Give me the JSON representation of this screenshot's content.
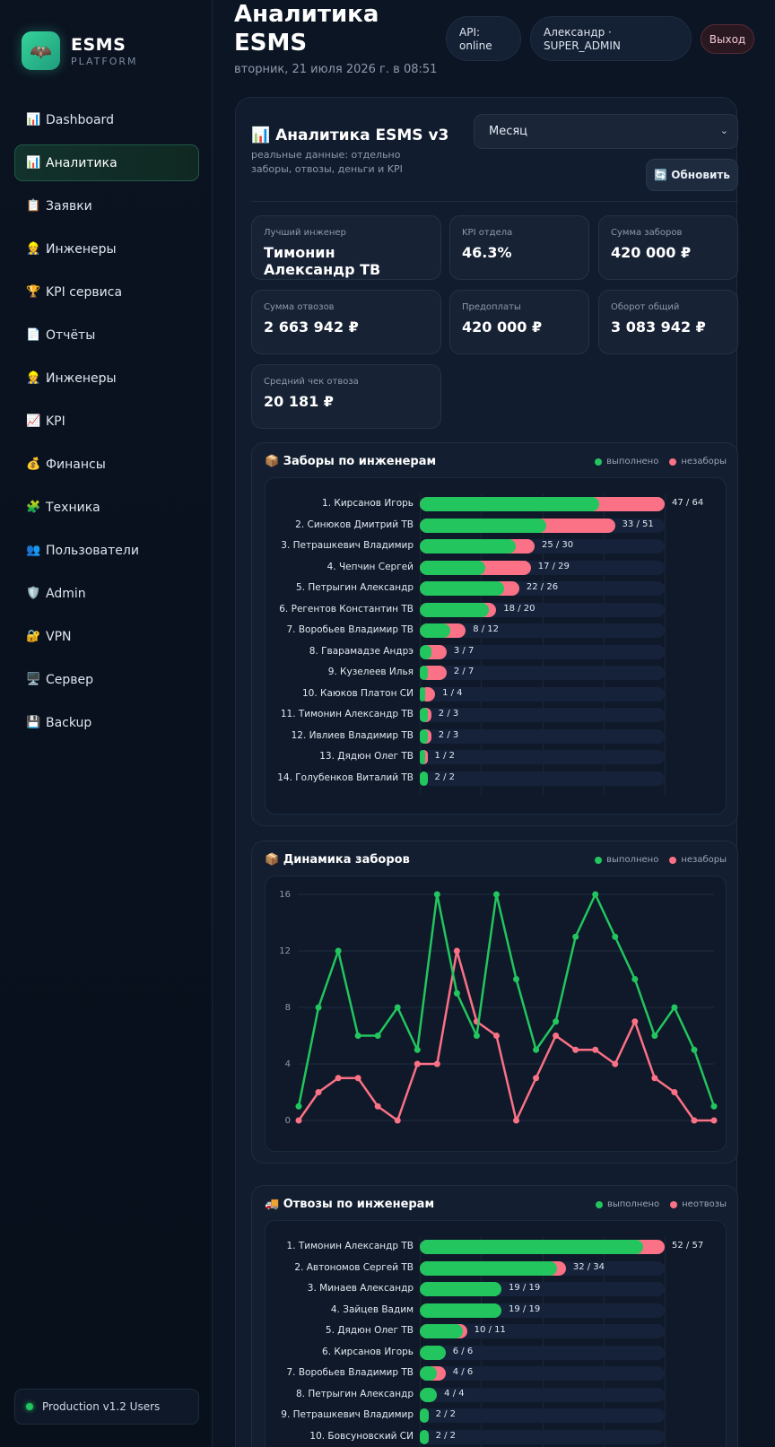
{
  "sidebar": {
    "brand_title": "ESMS",
    "brand_sub": "PLATFORM",
    "logo_icon": "🦇",
    "items": [
      {
        "icon": "📊",
        "label": "Dashboard",
        "active": false
      },
      {
        "icon": "📊",
        "label": "Аналитика",
        "active": true
      },
      {
        "icon": "📋",
        "label": "Заявки",
        "active": false
      },
      {
        "icon": "👷",
        "label": "Инженеры",
        "active": false
      },
      {
        "icon": "🏆",
        "label": "KPI сервиса",
        "active": false
      },
      {
        "icon": "📄",
        "label": "Отчёты",
        "active": false
      },
      {
        "icon": "👷",
        "label": "Инженеры",
        "active": false
      },
      {
        "icon": "📈",
        "label": "KPI",
        "active": false
      },
      {
        "icon": "💰",
        "label": "Финансы",
        "active": false
      },
      {
        "icon": "🧩",
        "label": "Техника",
        "active": false
      },
      {
        "icon": "👥",
        "label": "Пользователи",
        "active": false
      },
      {
        "icon": "🛡️",
        "label": "Admin",
        "active": false
      },
      {
        "icon": "🔐",
        "label": "VPN",
        "active": false
      },
      {
        "icon": "🖥️",
        "label": "Сервер",
        "active": false
      },
      {
        "icon": "💾",
        "label": "Backup",
        "active": false
      }
    ],
    "footer": "Production v1.2 Users"
  },
  "header": {
    "title": "Аналитика ESMS",
    "date": "вторник, 21 июля 2026 г. в 08:51",
    "api_status": "API: online",
    "user": "Александр · SUPER_ADMIN",
    "logout": "Выход"
  },
  "analytics": {
    "icon": "📊",
    "title": "Аналитика ESMS v3",
    "subtitle": "реальные данные: отдельно заборы, отвозы, деньги и KPI",
    "period": "Месяц",
    "refresh": "🔄 Обновить"
  },
  "kpis": [
    {
      "label": "Лучший инженер",
      "value": "Тимонин Александр ТВ"
    },
    {
      "label": "KPI отдела",
      "value": "46.3%"
    },
    {
      "label": "Сумма заборов",
      "value": "420 000 ₽"
    },
    {
      "label": "Сумма отвозов",
      "value": "2 663 942 ₽"
    },
    {
      "label": "Предоплаты",
      "value": "420 000 ₽"
    },
    {
      "label": "Оборот общий",
      "value": "3 083 942 ₽"
    },
    {
      "label": "Средний чек отвоза",
      "value": "20 181 ₽"
    }
  ],
  "colors": {
    "done": "#22c55e",
    "not_done": "#fb7185",
    "accent": "#35d49b"
  },
  "pickups": {
    "icon": "📦",
    "title": "Заборы по инженерам",
    "legend_done": "выполнено",
    "legend_fail": "незаборы",
    "max": 64,
    "rows": [
      {
        "label": "1. Кирсанов Игорь",
        "done": 47,
        "total": 64,
        "text": "47 / 64"
      },
      {
        "label": "2. Синюков Дмитрий ТВ",
        "done": 33,
        "total": 51,
        "text": "33 / 51"
      },
      {
        "label": "3. Петрашкевич Владимир",
        "done": 25,
        "total": 30,
        "text": "25 / 30"
      },
      {
        "label": "4. Чепчин Сергей",
        "done": 17,
        "total": 29,
        "text": "17 / 29"
      },
      {
        "label": "5. Петрыгин Александр",
        "done": 22,
        "total": 26,
        "text": "22 / 26"
      },
      {
        "label": "6. Регентов Константин ТВ",
        "done": 18,
        "total": 20,
        "text": "18 / 20"
      },
      {
        "label": "7. Воробьев Владимир ТВ",
        "done": 8,
        "total": 12,
        "text": "8 / 12"
      },
      {
        "label": "8. Гварамадзе Андрэ",
        "done": 3,
        "total": 7,
        "text": "3 / 7"
      },
      {
        "label": "9. Кузелеев Илья",
        "done": 2,
        "total": 7,
        "text": "2 / 7"
      },
      {
        "label": "10. Каюков Платон СИ",
        "done": 1,
        "total": 4,
        "text": "1 / 4"
      },
      {
        "label": "11. Тимонин Александр ТВ",
        "done": 2,
        "total": 3,
        "text": "2 / 3"
      },
      {
        "label": "12. Ивлиев Владимир ТВ",
        "done": 2,
        "total": 3,
        "text": "2 / 3"
      },
      {
        "label": "13. Дядюн Олег ТВ",
        "done": 1,
        "total": 2,
        "text": "1 / 2"
      },
      {
        "label": "14. Голубенков Виталий ТВ",
        "done": 2,
        "total": 2,
        "text": "2 / 2"
      }
    ]
  },
  "dynamics": {
    "icon": "📦",
    "title": "Динамика заборов",
    "legend_done": "выполнено",
    "legend_fail": "незаборы"
  },
  "chart_data": {
    "type": "line",
    "title": "Динамика заборов",
    "ylim": [
      0,
      16
    ],
    "yticks": [
      0,
      4,
      8,
      12,
      16
    ],
    "grid": true,
    "legend_position": "top-right",
    "x": [
      1,
      2,
      3,
      4,
      5,
      6,
      7,
      8,
      9,
      10,
      11,
      12,
      13,
      14,
      15,
      16,
      17,
      18,
      19,
      20,
      21,
      22
    ],
    "series": [
      {
        "name": "выполнено",
        "color": "#22c55e",
        "values": [
          1,
          8,
          12,
          6,
          6,
          8,
          5,
          16,
          9,
          6,
          16,
          10,
          5,
          7,
          13,
          16,
          13,
          10,
          6,
          8,
          5,
          1
        ]
      },
      {
        "name": "незаборы",
        "color": "#fb7185",
        "values": [
          0,
          2,
          3,
          3,
          1,
          0,
          4,
          4,
          12,
          7,
          6,
          0,
          3,
          6,
          5,
          5,
          4,
          7,
          3,
          2,
          0,
          0
        ]
      }
    ]
  },
  "deliveries": {
    "icon": "🚚",
    "title": "Отвозы по инженерам",
    "legend_done": "выполнено",
    "legend_fail": "неотвозы",
    "max": 57,
    "rows": [
      {
        "label": "1. Тимонин Александр ТВ",
        "done": 52,
        "total": 57,
        "text": "52 / 57"
      },
      {
        "label": "2. Автономов Сергей ТВ",
        "done": 32,
        "total": 34,
        "text": "32 / 34"
      },
      {
        "label": "3. Минаев Александр",
        "done": 19,
        "total": 19,
        "text": "19 / 19"
      },
      {
        "label": "4. Зайцев Вадим",
        "done": 19,
        "total": 19,
        "text": "19 / 19"
      },
      {
        "label": "5. Дядюн Олег ТВ",
        "done": 10,
        "total": 11,
        "text": "10 / 11"
      },
      {
        "label": "6. Кирсанов Игорь",
        "done": 6,
        "total": 6,
        "text": "6 / 6"
      },
      {
        "label": "7. Воробьев Владимир ТВ",
        "done": 4,
        "total": 6,
        "text": "4 / 6"
      },
      {
        "label": "8. Петрыгин Александр",
        "done": 4,
        "total": 4,
        "text": "4 / 4"
      },
      {
        "label": "9. Петрашкевич Владимир",
        "done": 2,
        "total": 2,
        "text": "2 / 2"
      },
      {
        "label": "10. Бовсуновский СИ",
        "done": 2,
        "total": 2,
        "text": "2 / 2"
      }
    ]
  }
}
